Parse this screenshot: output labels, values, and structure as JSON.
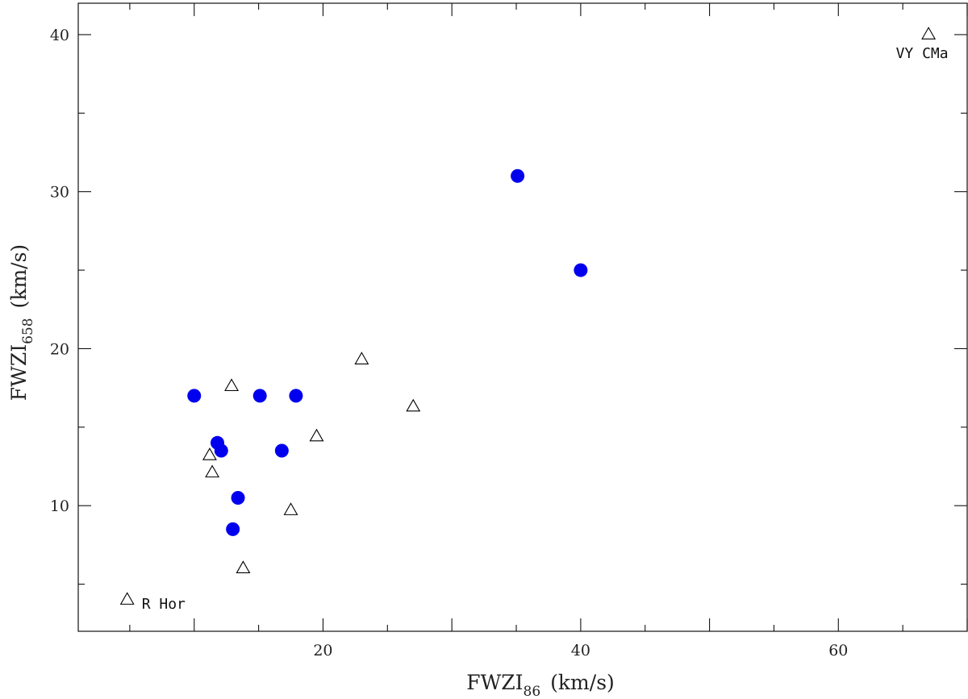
{
  "chart_data": {
    "type": "scatter",
    "xlabel": {
      "main": "FWZI",
      "sub": "86",
      "unit": "(km/s)"
    },
    "ylabel": {
      "main": "FWZI",
      "sub": "658",
      "unit": "(km/s)"
    },
    "xlim": [
      1,
      70
    ],
    "ylim": [
      2,
      42
    ],
    "x_ticks": [
      20,
      40,
      60
    ],
    "y_ticks": [
      10,
      20,
      30,
      40
    ],
    "x_tick_labels": [
      "20",
      "40",
      "60"
    ],
    "y_tick_labels": [
      "10",
      "20",
      "30",
      "40"
    ],
    "grid": false,
    "series": [
      {
        "marker": "filled-circle",
        "color": "#0000ee",
        "points": [
          {
            "x": 10,
            "y": 17
          },
          {
            "x": 11.8,
            "y": 14
          },
          {
            "x": 12.1,
            "y": 13.5
          },
          {
            "x": 13,
            "y": 8.5
          },
          {
            "x": 13.4,
            "y": 10.5
          },
          {
            "x": 15.1,
            "y": 17
          },
          {
            "x": 16.8,
            "y": 13.5
          },
          {
            "x": 17.9,
            "y": 17
          },
          {
            "x": 35.1,
            "y": 31
          },
          {
            "x": 40,
            "y": 25
          }
        ]
      },
      {
        "marker": "open-triangle",
        "color": "#000000",
        "points": [
          {
            "x": 4.8,
            "y": 4
          },
          {
            "x": 11.2,
            "y": 13.2
          },
          {
            "x": 11.4,
            "y": 12.1
          },
          {
            "x": 12.9,
            "y": 17.6
          },
          {
            "x": 13.8,
            "y": 6
          },
          {
            "x": 17.5,
            "y": 9.7
          },
          {
            "x": 19.5,
            "y": 14.4
          },
          {
            "x": 23,
            "y": 19.3
          },
          {
            "x": 27,
            "y": 16.3
          },
          {
            "x": 67,
            "y": 40
          }
        ]
      }
    ],
    "annotations": [
      {
        "text": "R Hor",
        "x": 4.8,
        "y": 4,
        "anchor": "start"
      },
      {
        "text": "VY CMa",
        "x": 67,
        "y": 40,
        "anchor": "middle"
      }
    ]
  }
}
